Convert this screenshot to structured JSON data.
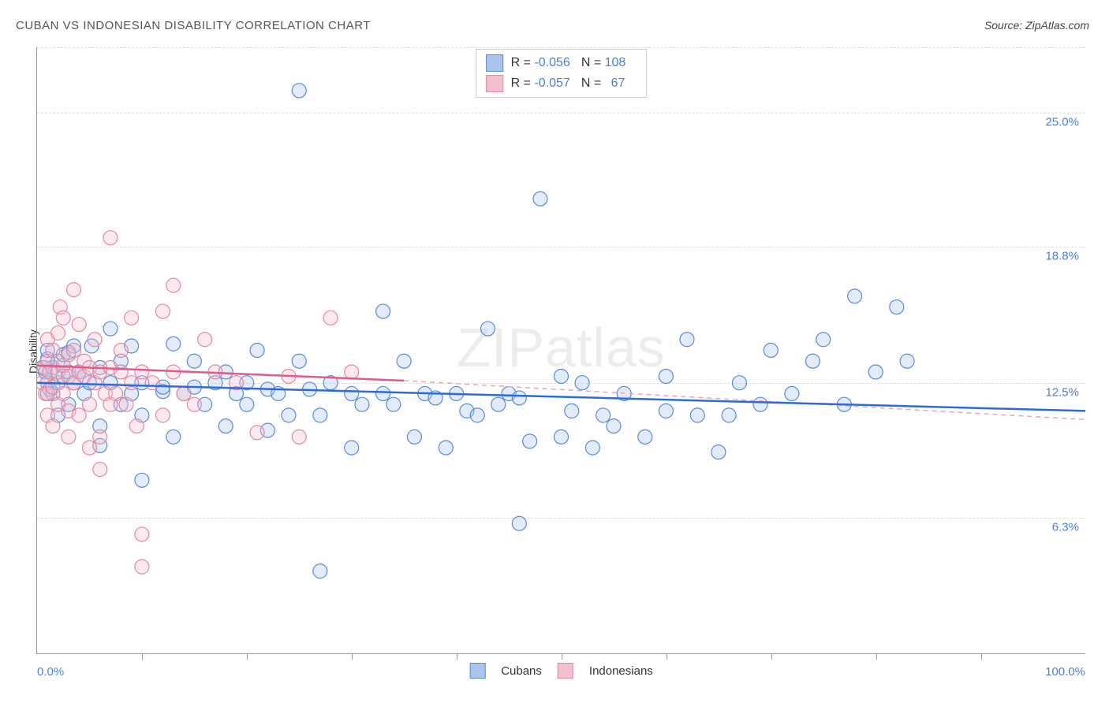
{
  "title": "CUBAN VS INDONESIAN DISABILITY CORRELATION CHART",
  "source": "Source: ZipAtlas.com",
  "y_axis_label": "Disability",
  "chart": {
    "type": "scatter",
    "xlim": [
      0,
      100
    ],
    "ylim": [
      0,
      28
    ],
    "x_min_label": "0.0%",
    "x_max_label": "100.0%",
    "y_ticks": [
      {
        "value": 6.3,
        "label": "6.3%"
      },
      {
        "value": 12.5,
        "label": "12.5%"
      },
      {
        "value": 18.8,
        "label": "18.8%"
      },
      {
        "value": 25.0,
        "label": "25.0%"
      }
    ],
    "x_tick_positions": [
      10,
      20,
      30,
      40,
      50,
      60,
      70,
      80,
      90
    ],
    "grid_color": "#dddddd",
    "background_color": "#ffffff",
    "axis_color": "#999999",
    "tick_label_color": "#4a7fd8",
    "marker_radius": 9,
    "marker_stroke_width": 1.2,
    "marker_fill_opacity": 0.35,
    "series": [
      {
        "name": "Cubans",
        "color_fill": "#a9c5ee",
        "color_stroke": "#5b8ad0",
        "regression": {
          "x1": 0,
          "y1": 12.5,
          "x2": 100,
          "y2": 11.2,
          "stroke": "#2e6bd6",
          "width": 2.5,
          "dash": "none"
        },
        "stats": {
          "R": "-0.056",
          "N": "108"
        },
        "points": [
          [
            0.5,
            13.2
          ],
          [
            0.8,
            13.0
          ],
          [
            1,
            12.5
          ],
          [
            1,
            13.6
          ],
          [
            1,
            12.0
          ],
          [
            1,
            14.0
          ],
          [
            1.2,
            12.2
          ],
          [
            1.5,
            13.2
          ],
          [
            1.5,
            12.0
          ],
          [
            2,
            13.5
          ],
          [
            2,
            12.5
          ],
          [
            2,
            11.0
          ],
          [
            2.5,
            12.8
          ],
          [
            2.5,
            13.8
          ],
          [
            3,
            13.9
          ],
          [
            3,
            13.0
          ],
          [
            3,
            11.5
          ],
          [
            3.5,
            12.5
          ],
          [
            3.5,
            14.2
          ],
          [
            4,
            13.0
          ],
          [
            4,
            13.0
          ],
          [
            4.5,
            12.0
          ],
          [
            5,
            12.5
          ],
          [
            5.2,
            14.2
          ],
          [
            6,
            13.2
          ],
          [
            6,
            10.5
          ],
          [
            6,
            9.6
          ],
          [
            7,
            12.5
          ],
          [
            7,
            15.0
          ],
          [
            8,
            11.5
          ],
          [
            8,
            13.5
          ],
          [
            9,
            12.0
          ],
          [
            9,
            14.2
          ],
          [
            10,
            12.5
          ],
          [
            10,
            11.0
          ],
          [
            10,
            8.0
          ],
          [
            12,
            12.1
          ],
          [
            12,
            12.3
          ],
          [
            13,
            14.3
          ],
          [
            13,
            10.0
          ],
          [
            14,
            12.0
          ],
          [
            15,
            12.3
          ],
          [
            15,
            13.5
          ],
          [
            16,
            11.5
          ],
          [
            17,
            12.5
          ],
          [
            18,
            13.0
          ],
          [
            18,
            10.5
          ],
          [
            19,
            12.0
          ],
          [
            20,
            11.5
          ],
          [
            20,
            12.5
          ],
          [
            21,
            14.0
          ],
          [
            22,
            12.2
          ],
          [
            22,
            10.3
          ],
          [
            23,
            12.0
          ],
          [
            24,
            11.0
          ],
          [
            25,
            26.0
          ],
          [
            25,
            13.5
          ],
          [
            26,
            12.2
          ],
          [
            27,
            11.0
          ],
          [
            27,
            3.8
          ],
          [
            28,
            12.5
          ],
          [
            30,
            9.5
          ],
          [
            30,
            12.0
          ],
          [
            31,
            11.5
          ],
          [
            33,
            12.0
          ],
          [
            33,
            15.8
          ],
          [
            34,
            11.5
          ],
          [
            35,
            13.5
          ],
          [
            36,
            10.0
          ],
          [
            37,
            12.0
          ],
          [
            38,
            11.8
          ],
          [
            39,
            9.5
          ],
          [
            40,
            12.0
          ],
          [
            41,
            11.2
          ],
          [
            42,
            11.0
          ],
          [
            43,
            15.0
          ],
          [
            44,
            11.5
          ],
          [
            45,
            12.0
          ],
          [
            46,
            6.0
          ],
          [
            46,
            11.8
          ],
          [
            47,
            9.8
          ],
          [
            48,
            21.0
          ],
          [
            50,
            10.0
          ],
          [
            50,
            12.8
          ],
          [
            51,
            11.2
          ],
          [
            52,
            12.5
          ],
          [
            53,
            9.5
          ],
          [
            54,
            11.0
          ],
          [
            55,
            10.5
          ],
          [
            56,
            12.0
          ],
          [
            58,
            10.0
          ],
          [
            60,
            11.2
          ],
          [
            60,
            12.8
          ],
          [
            62,
            14.5
          ],
          [
            63,
            11.0
          ],
          [
            65,
            9.3
          ],
          [
            66,
            11.0
          ],
          [
            67,
            12.5
          ],
          [
            69,
            11.5
          ],
          [
            70,
            14.0
          ],
          [
            72,
            12.0
          ],
          [
            74,
            13.5
          ],
          [
            75,
            14.5
          ],
          [
            77,
            11.5
          ],
          [
            78,
            16.5
          ],
          [
            80,
            13.0
          ],
          [
            82,
            16.0
          ],
          [
            83,
            13.5
          ]
        ]
      },
      {
        "name": "Indonesians",
        "color_fill": "#f5c0cd",
        "color_stroke": "#e089a2",
        "regression_solid": {
          "x1": 0,
          "y1": 13.3,
          "x2": 35,
          "y2": 12.6,
          "stroke": "#e05a8a",
          "width": 2.5
        },
        "regression_dash": {
          "x1": 35,
          "y1": 12.6,
          "x2": 100,
          "y2": 10.8,
          "stroke": "#e8a5b8",
          "width": 1.5,
          "dash": "6,5"
        },
        "stats": {
          "R": "-0.057",
          "N": "67"
        },
        "points": [
          [
            0.5,
            12.5
          ],
          [
            0.7,
            13.2
          ],
          [
            0.8,
            12.0
          ],
          [
            1,
            13.5
          ],
          [
            1,
            12.0
          ],
          [
            1,
            14.5
          ],
          [
            1,
            11.0
          ],
          [
            1.2,
            13.0
          ],
          [
            1.5,
            12.3
          ],
          [
            1.5,
            14.0
          ],
          [
            1.5,
            10.5
          ],
          [
            2,
            13.0
          ],
          [
            2,
            14.8
          ],
          [
            2,
            11.5
          ],
          [
            2.2,
            16.0
          ],
          [
            2.5,
            13.3
          ],
          [
            2.5,
            12.0
          ],
          [
            2.5,
            15.5
          ],
          [
            3,
            13.8
          ],
          [
            3,
            12.8
          ],
          [
            3,
            11.2
          ],
          [
            3,
            10.0
          ],
          [
            3.5,
            14.0
          ],
          [
            3.5,
            12.5
          ],
          [
            3.5,
            16.8
          ],
          [
            4,
            13.0
          ],
          [
            4,
            11.0
          ],
          [
            4,
            15.2
          ],
          [
            4.5,
            12.8
          ],
          [
            4.5,
            13.5
          ],
          [
            5,
            11.5
          ],
          [
            5,
            13.2
          ],
          [
            5,
            9.5
          ],
          [
            5.5,
            12.5
          ],
          [
            5.5,
            14.5
          ],
          [
            6,
            13.0
          ],
          [
            6,
            10.0
          ],
          [
            6,
            8.5
          ],
          [
            6.5,
            12.0
          ],
          [
            7,
            13.2
          ],
          [
            7,
            11.5
          ],
          [
            7,
            19.2
          ],
          [
            7.5,
            12.0
          ],
          [
            8,
            13.0
          ],
          [
            8,
            14.0
          ],
          [
            8.5,
            11.5
          ],
          [
            9,
            12.5
          ],
          [
            9,
            15.5
          ],
          [
            9.5,
            10.5
          ],
          [
            10,
            13.0
          ],
          [
            10,
            5.5
          ],
          [
            10,
            4.0
          ],
          [
            11,
            12.5
          ],
          [
            12,
            11.0
          ],
          [
            12,
            15.8
          ],
          [
            13,
            13.0
          ],
          [
            13,
            17.0
          ],
          [
            14,
            12.0
          ],
          [
            15,
            11.5
          ],
          [
            16,
            14.5
          ],
          [
            17,
            13.0
          ],
          [
            19,
            12.5
          ],
          [
            21,
            10.2
          ],
          [
            24,
            12.8
          ],
          [
            25,
            10.0
          ],
          [
            28,
            15.5
          ],
          [
            30,
            13.0
          ]
        ]
      }
    ]
  },
  "legend_bottom": [
    {
      "label": "Cubans",
      "fill": "#a9c5ee",
      "stroke": "#5b8ad0"
    },
    {
      "label": "Indonesians",
      "fill": "#f5c0cd",
      "stroke": "#e089a2"
    }
  ],
  "watermark": {
    "bold": "ZIP",
    "light": "atlas"
  }
}
